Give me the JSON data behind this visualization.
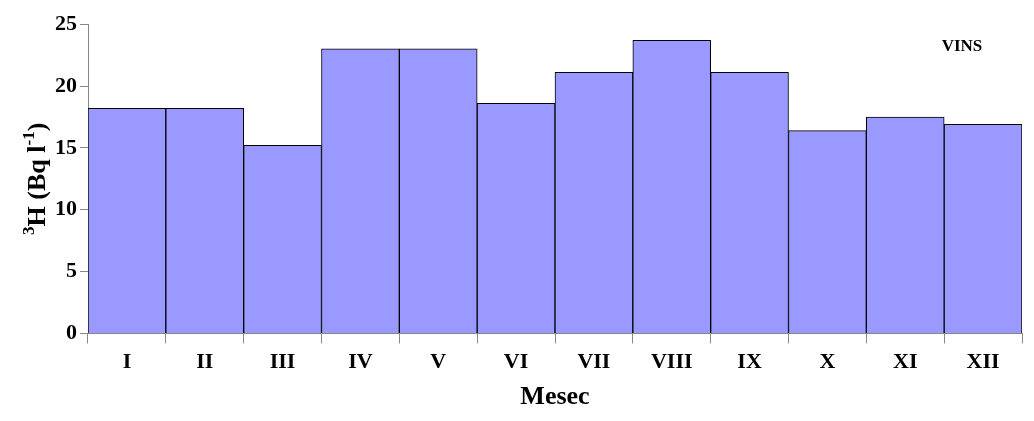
{
  "chart_data": {
    "type": "bar",
    "categories": [
      "I",
      "II",
      "III",
      "IV",
      "V",
      "VI",
      "VII",
      "VIII",
      "IX",
      "X",
      "XI",
      "XII"
    ],
    "values": [
      18.2,
      18.2,
      15.2,
      23.0,
      23.0,
      18.6,
      21.1,
      23.7,
      21.1,
      16.4,
      17.5,
      16.9
    ],
    "color": "#9999ff",
    "xlabel": "Mesec",
    "ylabel": "$^{3}$H (Bq l$^{-1}$)",
    "ylim": [
      0,
      25
    ],
    "yticks": [
      0,
      5,
      10,
      15,
      20,
      25
    ],
    "annotations": [
      "VINS"
    ],
    "grid": false,
    "legend": false
  }
}
